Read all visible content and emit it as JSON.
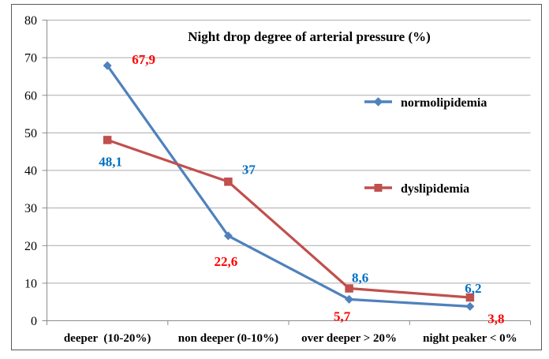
{
  "chart_data": {
    "type": "line",
    "title": "Night drop degree of arterial pressure (%)",
    "categories": [
      "deeper  (10-20%)",
      "non deeper (0-10%)",
      "over deeper > 20%",
      "night peaker < 0%"
    ],
    "series": [
      {
        "name": "normolipidemia",
        "values": [
          67.9,
          22.6,
          5.7,
          3.8
        ],
        "labels": [
          "67,9",
          "22,6",
          "5,7",
          "3,8"
        ],
        "color": "#4F81BD",
        "label_color": "#FF0000",
        "marker": "diamond"
      },
      {
        "name": "dyslipidemia",
        "values": [
          48.1,
          37,
          8.6,
          6.2
        ],
        "labels": [
          "48,1",
          "37",
          "8,6",
          "6,2"
        ],
        "color": "#C0504D",
        "label_color": "#0070C0",
        "marker": "square"
      }
    ],
    "y_axis": {
      "min": 0,
      "max": 80,
      "step": 10,
      "tick_labels": [
        "0",
        "10",
        "20",
        "30",
        "40",
        "50",
        "60",
        "70",
        "80"
      ]
    },
    "xlabel": "",
    "ylabel": "",
    "ylim": [
      0,
      80
    ],
    "grid": true,
    "legend_position": "inside-right",
    "label_offsets": [
      [
        [
          46,
          -8
        ],
        [
          -3,
          32
        ],
        [
          -9,
          21
        ],
        [
          33,
          15
        ]
      ],
      [
        [
          4,
          27
        ],
        [
          26,
          -16
        ],
        [
          14,
          -14
        ],
        [
          4,
          -12
        ]
      ]
    ],
    "colors": {
      "gridline": "#ABABAB",
      "axis": "#8C8C8C",
      "border": "#595959",
      "background": "#FFFFFF",
      "text": "#000000"
    }
  }
}
